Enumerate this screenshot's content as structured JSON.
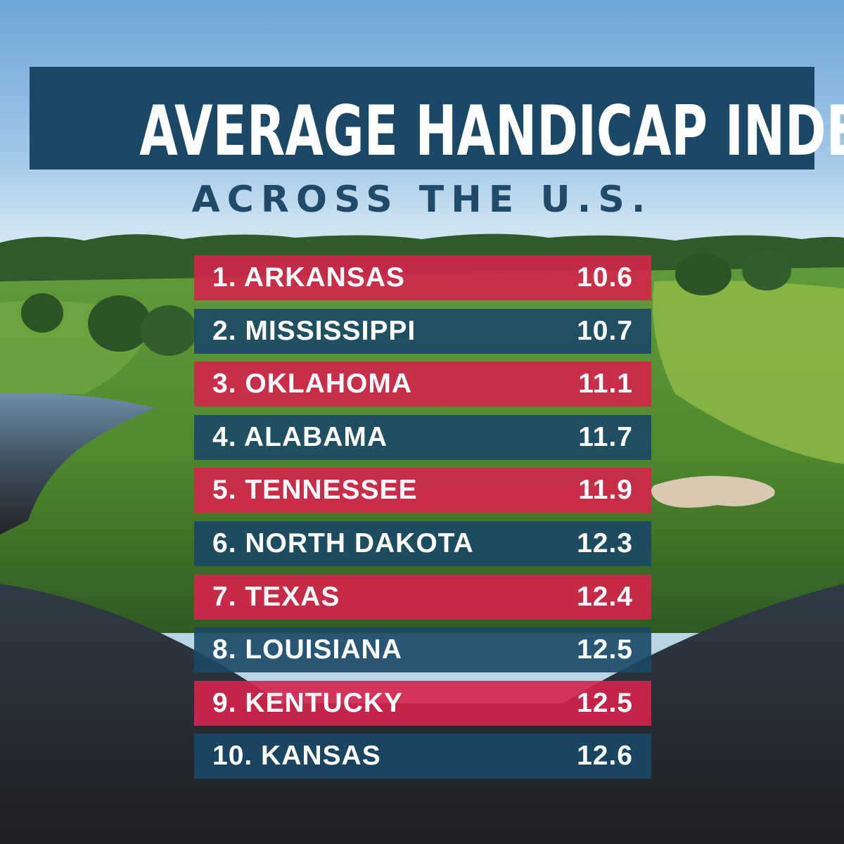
{
  "title": "AVERAGE HANDICAP INDEX",
  "title_mark": "®",
  "subtitle": "ACROSS THE U.S.",
  "colors": {
    "title_bg": "#1c4868",
    "row_red": "#d6234b",
    "row_blue": "#1a4866",
    "subtitle_text": "#1f4a6a"
  },
  "rankings": [
    {
      "label": "1. ARKANSAS",
      "value": "10.6"
    },
    {
      "label": "2. MISSISSIPPI",
      "value": "10.7"
    },
    {
      "label": "3. OKLAHOMA",
      "value": "11.1"
    },
    {
      "label": "4. ALABAMA",
      "value": "11.7"
    },
    {
      "label": "5. TENNESSEE",
      "value": "11.9"
    },
    {
      "label": "6. NORTH DAKOTA",
      "value": "12.3"
    },
    {
      "label": "7. TEXAS",
      "value": "12.4"
    },
    {
      "label": "8. LOUISIANA",
      "value": "12.5"
    },
    {
      "label": "9. KENTUCKY",
      "value": "12.5"
    },
    {
      "label": "10. KANSAS",
      "value": "12.6"
    }
  ]
}
